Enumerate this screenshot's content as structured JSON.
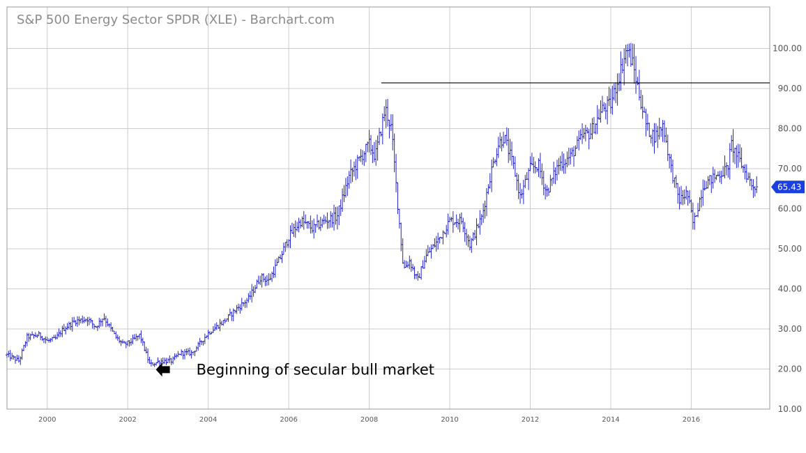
{
  "colors": {
    "background": "#ffffff",
    "frame": "#999999",
    "grid": "#cccccc",
    "bars": "#2222cc",
    "resistance_line": "#000000",
    "price_label_bg": "#1a3fe0",
    "price_label_text": "#ffffff",
    "title": "#8a8a8a",
    "annotation": "#000000"
  },
  "chart_data": {
    "type": "ohlc",
    "title": "S&P 500 Energy Sector SPDR (XLE) - Barchart.com",
    "xlabel": "",
    "ylabel": "",
    "x_ticks": [
      "2000",
      "2002",
      "2004",
      "2006",
      "2008",
      "2010",
      "2012",
      "2014",
      "2016"
    ],
    "y_ticks": [
      "10.00",
      "20.00",
      "30.00",
      "40.00",
      "50.00",
      "60.00",
      "70.00",
      "80.00",
      "90.00",
      "100.00"
    ],
    "xlim": [
      1999.0,
      2017.95
    ],
    "ylim": [
      10,
      105
    ],
    "grid": true,
    "legend": "none",
    "last_price": "65.43",
    "resistance_level": 91.4,
    "resistance_start": 2008.3,
    "annotation": {
      "text": "Beginning of secular bull market",
      "x": 2002.7,
      "y": 19.5,
      "marker": "left-arrow"
    },
    "anchors": [
      {
        "t": 1999.0,
        "v": 23.5
      },
      {
        "t": 1999.3,
        "v": 22.0
      },
      {
        "t": 1999.5,
        "v": 28.0
      },
      {
        "t": 1999.8,
        "v": 28.5
      },
      {
        "t": 2000.0,
        "v": 27.0
      },
      {
        "t": 2000.2,
        "v": 27.5
      },
      {
        "t": 2000.4,
        "v": 30.0
      },
      {
        "t": 2000.7,
        "v": 32.0
      },
      {
        "t": 2001.0,
        "v": 32.5
      },
      {
        "t": 2001.2,
        "v": 30.5
      },
      {
        "t": 2001.4,
        "v": 33.0
      },
      {
        "t": 2001.7,
        "v": 28.0
      },
      {
        "t": 2001.9,
        "v": 26.0
      },
      {
        "t": 2002.1,
        "v": 27.0
      },
      {
        "t": 2002.3,
        "v": 28.5
      },
      {
        "t": 2002.55,
        "v": 21.0
      },
      {
        "t": 2002.8,
        "v": 22.0
      },
      {
        "t": 2003.1,
        "v": 22.0
      },
      {
        "t": 2003.3,
        "v": 24.0
      },
      {
        "t": 2003.6,
        "v": 24.0
      },
      {
        "t": 2004.0,
        "v": 29.0
      },
      {
        "t": 2004.4,
        "v": 32.0
      },
      {
        "t": 2004.7,
        "v": 35.0
      },
      {
        "t": 2005.0,
        "v": 37.5
      },
      {
        "t": 2005.3,
        "v": 43.0
      },
      {
        "t": 2005.5,
        "v": 42.0
      },
      {
        "t": 2005.8,
        "v": 48.0
      },
      {
        "t": 2006.0,
        "v": 53.0
      },
      {
        "t": 2006.3,
        "v": 57.0
      },
      {
        "t": 2006.6,
        "v": 55.0
      },
      {
        "t": 2006.9,
        "v": 57.0
      },
      {
        "t": 2007.2,
        "v": 58.0
      },
      {
        "t": 2007.5,
        "v": 68.0
      },
      {
        "t": 2007.8,
        "v": 73.0
      },
      {
        "t": 2008.0,
        "v": 76.0
      },
      {
        "t": 2008.15,
        "v": 73.0
      },
      {
        "t": 2008.4,
        "v": 85.0
      },
      {
        "t": 2008.55,
        "v": 80.0
      },
      {
        "t": 2008.7,
        "v": 62.0
      },
      {
        "t": 2008.85,
        "v": 45.0
      },
      {
        "t": 2009.0,
        "v": 47.0
      },
      {
        "t": 2009.2,
        "v": 42.0
      },
      {
        "t": 2009.4,
        "v": 48.0
      },
      {
        "t": 2009.7,
        "v": 52.0
      },
      {
        "t": 2010.0,
        "v": 57.0
      },
      {
        "t": 2010.3,
        "v": 57.0
      },
      {
        "t": 2010.5,
        "v": 51.0
      },
      {
        "t": 2010.8,
        "v": 58.0
      },
      {
        "t": 2011.0,
        "v": 68.0
      },
      {
        "t": 2011.2,
        "v": 76.0
      },
      {
        "t": 2011.35,
        "v": 78.0
      },
      {
        "t": 2011.6,
        "v": 70.0
      },
      {
        "t": 2011.75,
        "v": 63.0
      },
      {
        "t": 2012.0,
        "v": 70.0
      },
      {
        "t": 2012.2,
        "v": 71.0
      },
      {
        "t": 2012.4,
        "v": 64.0
      },
      {
        "t": 2012.7,
        "v": 71.0
      },
      {
        "t": 2013.0,
        "v": 73.0
      },
      {
        "t": 2013.3,
        "v": 78.0
      },
      {
        "t": 2013.5,
        "v": 79.0
      },
      {
        "t": 2013.8,
        "v": 85.0
      },
      {
        "t": 2014.0,
        "v": 86.0
      },
      {
        "t": 2014.2,
        "v": 93.0
      },
      {
        "t": 2014.4,
        "v": 100.0
      },
      {
        "t": 2014.55,
        "v": 96.0
      },
      {
        "t": 2014.7,
        "v": 89.0
      },
      {
        "t": 2014.9,
        "v": 80.0
      },
      {
        "t": 2015.1,
        "v": 78.0
      },
      {
        "t": 2015.3,
        "v": 81.0
      },
      {
        "t": 2015.5,
        "v": 70.0
      },
      {
        "t": 2015.7,
        "v": 62.0
      },
      {
        "t": 2015.9,
        "v": 64.0
      },
      {
        "t": 2016.05,
        "v": 56.0
      },
      {
        "t": 2016.3,
        "v": 66.0
      },
      {
        "t": 2016.6,
        "v": 68.0
      },
      {
        "t": 2016.9,
        "v": 70.0
      },
      {
        "t": 2017.0,
        "v": 76.0
      },
      {
        "t": 2017.3,
        "v": 70.0
      },
      {
        "t": 2017.5,
        "v": 66.0
      },
      {
        "t": 2017.65,
        "v": 65.43
      }
    ]
  }
}
